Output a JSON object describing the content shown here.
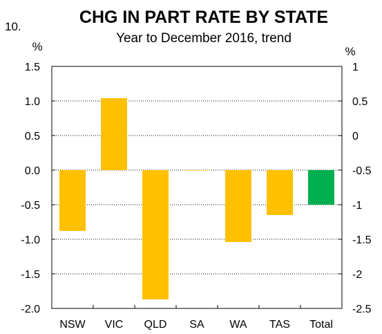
{
  "chart_data": {
    "type": "bar",
    "figure_number": "10.",
    "title": "CHG IN PART RATE BY STATE",
    "subtitle": "Year to December 2016, trend",
    "ylabel_left": "%",
    "ylabel_right": "%",
    "ylim": [
      -2.0,
      1.5
    ],
    "ylim_right": [
      -2.5,
      1
    ],
    "yticks_left": [
      "1.5",
      "1.0",
      "0.5",
      "0.0",
      "-0.5",
      "-1.0",
      "-1.5",
      "-2.0"
    ],
    "yticks_left_values": [
      1.5,
      1.0,
      0.5,
      0.0,
      -0.5,
      -1.0,
      -1.5,
      -2.0
    ],
    "yticks_right": [
      "1",
      "0.5",
      "0",
      "-0.5",
      "-1",
      "-1.5",
      "-2",
      "-2.5"
    ],
    "grid": "horizontal dotted",
    "categories": [
      "NSW",
      "VIC",
      "QLD",
      "SA",
      "WA",
      "TAS",
      "Total"
    ],
    "values": [
      -0.88,
      1.04,
      -1.87,
      0.0,
      -1.04,
      -0.65,
      -0.5
    ],
    "colors": [
      "#ffc000",
      "#ffc000",
      "#ffc000",
      "#ffc000",
      "#ffc000",
      "#ffc000",
      "#00b050"
    ]
  }
}
